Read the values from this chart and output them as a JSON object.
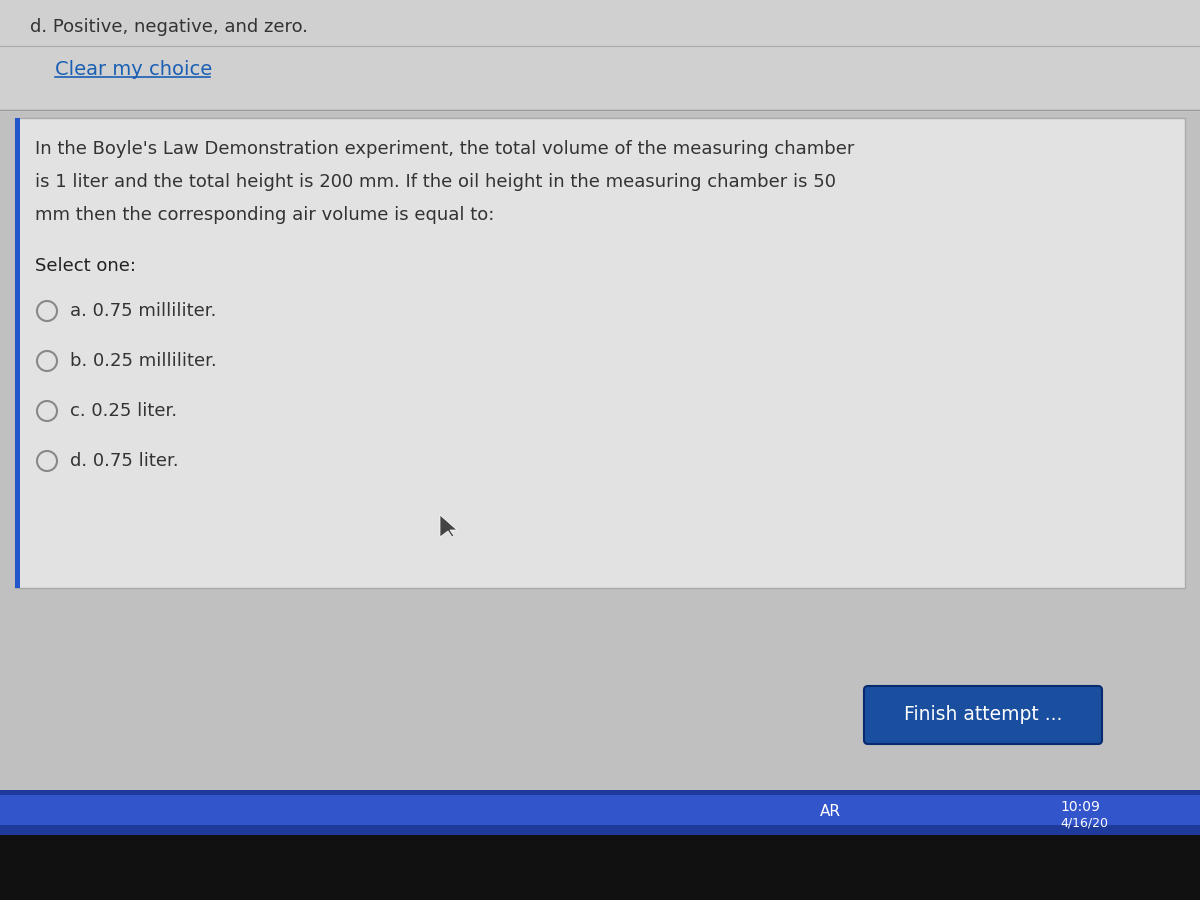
{
  "bg_color": "#c0c0c0",
  "top_section_bg": "#d0d0d0",
  "question_box_bg": "#e2e2e2",
  "clear_my_choice_text": "Clear my choice",
  "clear_my_choice_color": "#1a5fb4",
  "top_text": "d. Positive, negative, and zero.",
  "question_line1": "In the Boyle's Law Demonstration experiment, the total volume of the measuring chamber",
  "question_line2": "is 1 liter and the total height is 200 mm. If the oil height in the measuring chamber is 50",
  "question_line3": "mm then the corresponding air volume is equal to:",
  "select_one_text": "Select one:",
  "options": [
    "a. 0.75 milliliter.",
    "b. 0.25 milliliter.",
    "c. 0.25 liter.",
    "d. 0.75 liter."
  ],
  "finish_button_text": "Finish attempt ...",
  "finish_button_bg": "#1a4fa0",
  "finish_button_text_color": "#ffffff",
  "taskbar_bg": "#1e3a9a",
  "bottom_bar_bg": "#111111",
  "text_color_main": "#222222",
  "text_color_question": "#333333",
  "radio_color": "#888888",
  "option_text_color": "#333333",
  "ar_text": "AR",
  "time_text": "10:09",
  "date_text": "4/16/20"
}
